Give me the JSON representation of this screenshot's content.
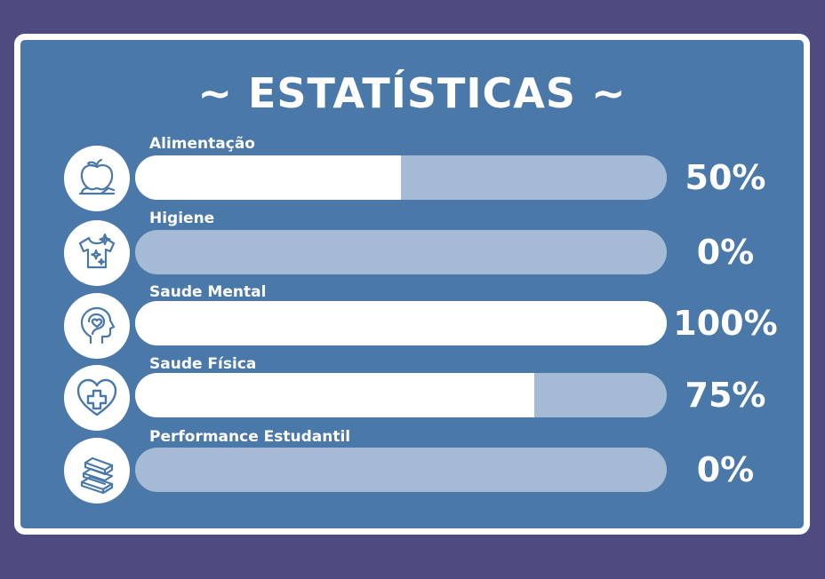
{
  "title": "~ ESTATÍSTICAS ~",
  "stats": [
    {
      "label": "Alimentação",
      "percent_text": "50%",
      "value": 50,
      "icon": "apple-fruit-icon"
    },
    {
      "label": "Higiene",
      "percent_text": "0%",
      "value": 0,
      "icon": "clean-shirt-icon"
    },
    {
      "label": "Saude Mental",
      "percent_text": "100%",
      "value": 100,
      "icon": "brain-heart-icon"
    },
    {
      "label": "Saude Física",
      "percent_text": "75%",
      "value": 75,
      "icon": "heart-plus-icon"
    },
    {
      "label": "Performance Estudantil",
      "percent_text": "0%",
      "value": 0,
      "icon": "books-stack-icon"
    }
  ],
  "colors": {
    "background": "#4e4b80",
    "card": "#4a79a9",
    "border": "#ffffff",
    "track": "#a5bbd5",
    "fill": "#ffffff",
    "icon_stroke": "#4a79a9"
  }
}
